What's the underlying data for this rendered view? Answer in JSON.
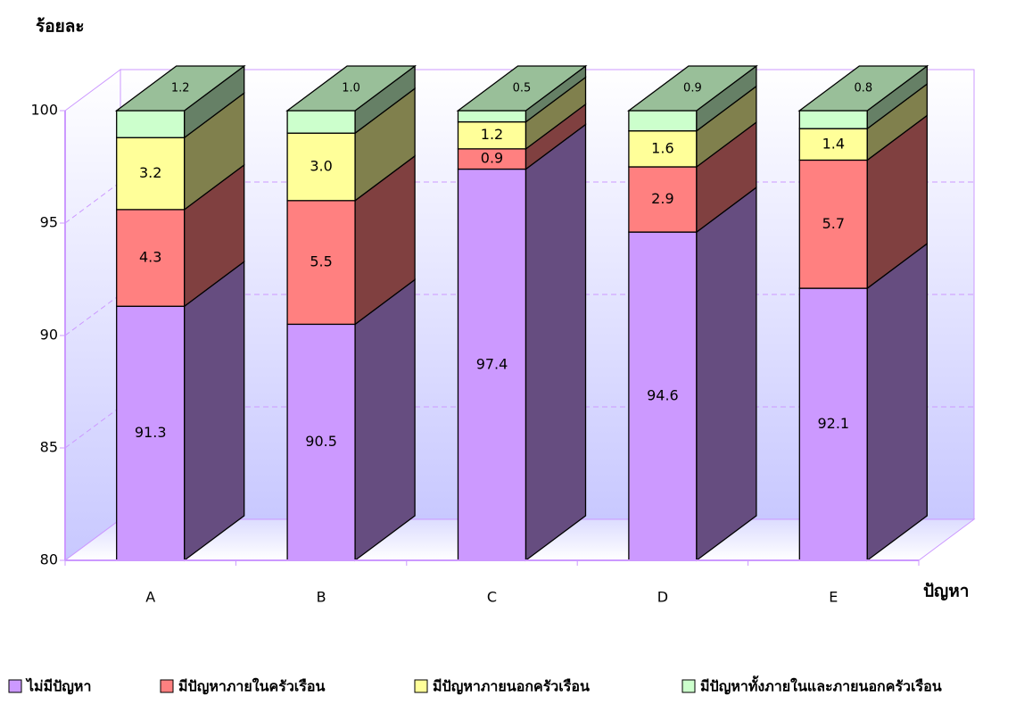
{
  "chart_data": {
    "type": "bar3d_stacked",
    "y_label": "ร้อยละ",
    "x_label": "ปัญหา",
    "categories": [
      "A",
      "B",
      "C",
      "D",
      "E"
    ],
    "ylim": [
      80,
      100
    ],
    "yticks": [
      80,
      85,
      90,
      95,
      100
    ],
    "grid": true,
    "series": [
      {
        "name": "ไม่มีปัญหา",
        "color": "#cc99ff",
        "values": [
          91.3,
          90.5,
          97.4,
          94.6,
          92.1
        ]
      },
      {
        "name": "มีปัญหาภายในครัวเรือน",
        "color": "#ff8080",
        "values": [
          4.3,
          5.5,
          0.9,
          2.9,
          5.7
        ]
      },
      {
        "name": "มีปัญหาภายนอกครัวเรือน",
        "color": "#ffff99",
        "values": [
          3.2,
          3.0,
          1.2,
          1.6,
          1.4
        ],
        "value_labels": [
          "3.2",
          "3.0",
          "1.2",
          "1.6",
          "1.4"
        ]
      },
      {
        "name": "มีปัญหาทั้งภายในและภายนอกครัวเรือน",
        "color": "#ccffcc",
        "values": [
          1.2,
          1.0,
          0.5,
          0.9,
          0.8
        ],
        "value_labels": [
          "1.2",
          "1.0",
          "0.5",
          "0.9",
          "0.8"
        ]
      }
    ]
  }
}
